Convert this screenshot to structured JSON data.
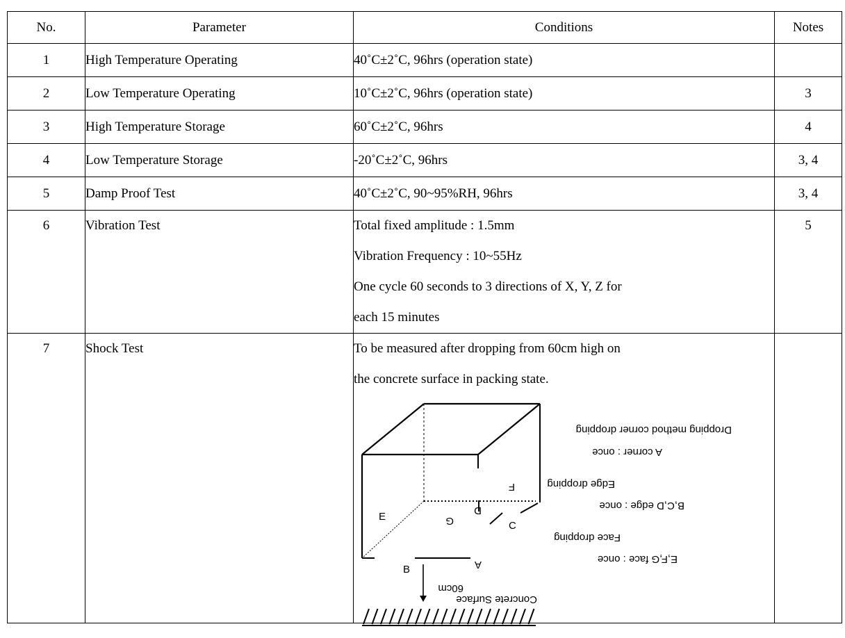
{
  "table": {
    "headers": {
      "no": "No.",
      "parameter": "Parameter",
      "conditions": "Conditions",
      "notes": "Notes"
    },
    "rows": [
      {
        "no": "1",
        "parameter": "High Temperature Operating",
        "conditions": [
          "40˚C±2˚C, 96hrs (operation state)"
        ],
        "notes": ""
      },
      {
        "no": "2",
        "parameter": "Low Temperature Operating",
        "conditions": [
          "10˚C±2˚C, 96hrs (operation state)"
        ],
        "notes": "3"
      },
      {
        "no": "3",
        "parameter": "High Temperature Storage",
        "conditions": [
          "60˚C±2˚C, 96hrs"
        ],
        "notes": "4"
      },
      {
        "no": "4",
        "parameter": "Low Temperature Storage",
        "conditions": [
          "-20˚C±2˚C, 96hrs"
        ],
        "notes": "3, 4"
      },
      {
        "no": "5",
        "parameter": "Damp Proof Test",
        "conditions": [
          "40˚C±2˚C, 90~95%RH, 96hrs"
        ],
        "notes": "3, 4"
      },
      {
        "no": "6",
        "parameter": "Vibration Test",
        "conditions": [
          "Total fixed amplitude : 1.5mm",
          "Vibration Frequency : 10~55Hz",
          "One cycle 60 seconds to 3 directions of X, Y, Z for",
          "each 15 minutes"
        ],
        "notes": "5"
      },
      {
        "no": "7",
        "parameter": "Shock Test",
        "conditions": [
          "To be measured after dropping from 60cm high on",
          "the concrete surface in packing state."
        ],
        "notes": ""
      }
    ]
  },
  "diagram": {
    "labels": {
      "e": "E",
      "f": "F",
      "g": "G",
      "d": "D",
      "c": "C",
      "b": "B",
      "a": "A",
      "height": "60cm",
      "surface": "Concrete Surface"
    },
    "methods": [
      "Dropping method corner dropping",
      "A corner : once",
      "Edge dropping",
      "B,C,D edge : once",
      "Face dropping",
      "E,F,G face : once"
    ]
  }
}
